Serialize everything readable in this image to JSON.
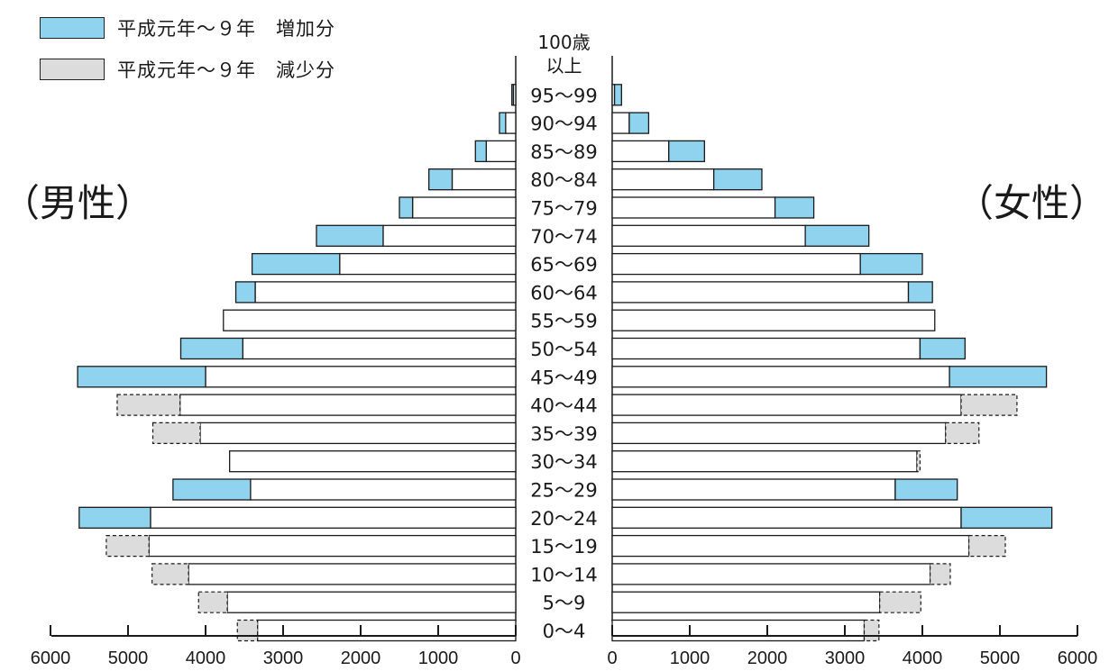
{
  "colors": {
    "increase": "#8fd3ee",
    "decrease": "#dcdcdc",
    "base": "#ffffff",
    "stroke": "#1a1a1a"
  },
  "chart_data": {
    "type": "bar",
    "orientation": "horizontal-population-pyramid",
    "legend": {
      "increase": "平成元年～９年　増加分",
      "decrease": "平成元年～９年　減少分"
    },
    "male_label": "（男性）",
    "female_label": "（女性）",
    "xlim": [
      0,
      6000
    ],
    "x_ticks": [
      "6000",
      "5000",
      "4000",
      "3000",
      "2000",
      "1000",
      "0",
      "0",
      "1000",
      "2000",
      "3000",
      "4000",
      "5000",
      "6000"
    ],
    "categories": [
      "0～4",
      "5～9",
      "10～14",
      "15～19",
      "20～24",
      "25～29",
      "30～34",
      "35～39",
      "40～44",
      "45～49",
      "50～54",
      "55～59",
      "60～64",
      "65～69",
      "70～74",
      "75～79",
      "80～84",
      "85～89",
      "90～94",
      "95～99",
      "100歳以上"
    ],
    "series": [
      {
        "name": "男性",
        "base": [
          3330,
          3720,
          4220,
          4730,
          4710,
          3420,
          3690,
          4070,
          4330,
          4000,
          3520,
          3770,
          3360,
          2270,
          1710,
          1330,
          820,
          380,
          130,
          30,
          0
        ],
        "increase": [
          0,
          0,
          0,
          0,
          920,
          1000,
          0,
          0,
          0,
          1650,
          800,
          0,
          250,
          1130,
          860,
          170,
          300,
          140,
          80,
          20,
          0
        ],
        "decrease": [
          260,
          370,
          470,
          550,
          0,
          0,
          0,
          610,
          810,
          0,
          0,
          0,
          0,
          0,
          0,
          0,
          0,
          0,
          0,
          0,
          0
        ]
      },
      {
        "name": "女性",
        "base": [
          3250,
          3450,
          4100,
          4600,
          4500,
          3650,
          3930,
          4300,
          4500,
          4350,
          3970,
          4160,
          3820,
          3200,
          2490,
          2100,
          1310,
          730,
          220,
          30,
          0
        ],
        "increase": [
          0,
          0,
          0,
          0,
          1170,
          800,
          0,
          0,
          0,
          1250,
          580,
          0,
          310,
          800,
          820,
          500,
          620,
          460,
          250,
          90,
          0
        ],
        "decrease": [
          190,
          530,
          260,
          470,
          0,
          0,
          40,
          430,
          720,
          0,
          0,
          0,
          0,
          0,
          0,
          0,
          0,
          0,
          0,
          0,
          0
        ]
      }
    ]
  }
}
